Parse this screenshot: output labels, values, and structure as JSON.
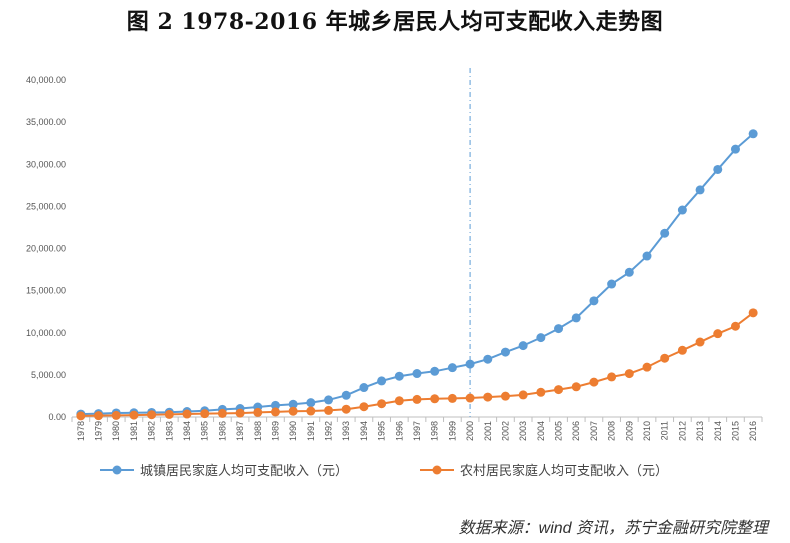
{
  "title": "图 2 1978-2016 年城乡居民人均可支配收入走势图",
  "source": "数据来源：wind 资讯，苏宁金融研究院整理",
  "chart_data": {
    "type": "line",
    "title": "图 2 1978-2016 年城乡居民人均可支配收入走势图",
    "xlabel": "",
    "ylabel": "",
    "ylim": [
      0,
      40000
    ],
    "yticks": [
      "0.00",
      "5,000.00",
      "10,000.00",
      "15,000.00",
      "20,000.00",
      "25,000.00",
      "30,000.00",
      "35,000.00",
      "40,000.00"
    ],
    "x": [
      "1978",
      "1979",
      "1980",
      "1981",
      "1982",
      "1983",
      "1984",
      "1985",
      "1986",
      "1987",
      "1988",
      "1989",
      "1990",
      "1991",
      "1992",
      "1993",
      "1994",
      "1995",
      "1996",
      "1997",
      "1998",
      "1999",
      "2000",
      "2001",
      "2002",
      "2003",
      "2004",
      "2005",
      "2006",
      "2007",
      "2008",
      "2009",
      "2010",
      "2011",
      "2012",
      "2013",
      "2014",
      "2015",
      "2016"
    ],
    "reference_line_x": "2000",
    "legend_position": "bottom",
    "series": [
      {
        "name": "城镇居民家庭人均可支配收入（元）",
        "color": "#5B9BD5",
        "values": [
          343,
          405,
          478,
          500,
          535,
          565,
          652,
          739,
          900,
          1002,
          1180,
          1374,
          1510,
          1701,
          2027,
          2577,
          3496,
          4283,
          4839,
          5160,
          5425,
          5854,
          6280,
          6860,
          7703,
          8472,
          9422,
          10493,
          11759,
          13786,
          15781,
          17175,
          19109,
          21810,
          24565,
          26955,
          29381,
          31790,
          33616
        ]
      },
      {
        "name": "农村居民家庭人均可支配收入（元）",
        "color": "#ED7D31",
        "values": [
          134,
          160,
          191,
          223,
          270,
          310,
          355,
          398,
          424,
          463,
          545,
          602,
          686,
          709,
          784,
          922,
          1221,
          1578,
          1926,
          2090,
          2162,
          2210,
          2253,
          2366,
          2476,
          2622,
          2936,
          3255,
          3587,
          4140,
          4761,
          5153,
          5919,
          6977,
          7917,
          8896,
          9892,
          10772,
          12363
        ]
      }
    ]
  }
}
